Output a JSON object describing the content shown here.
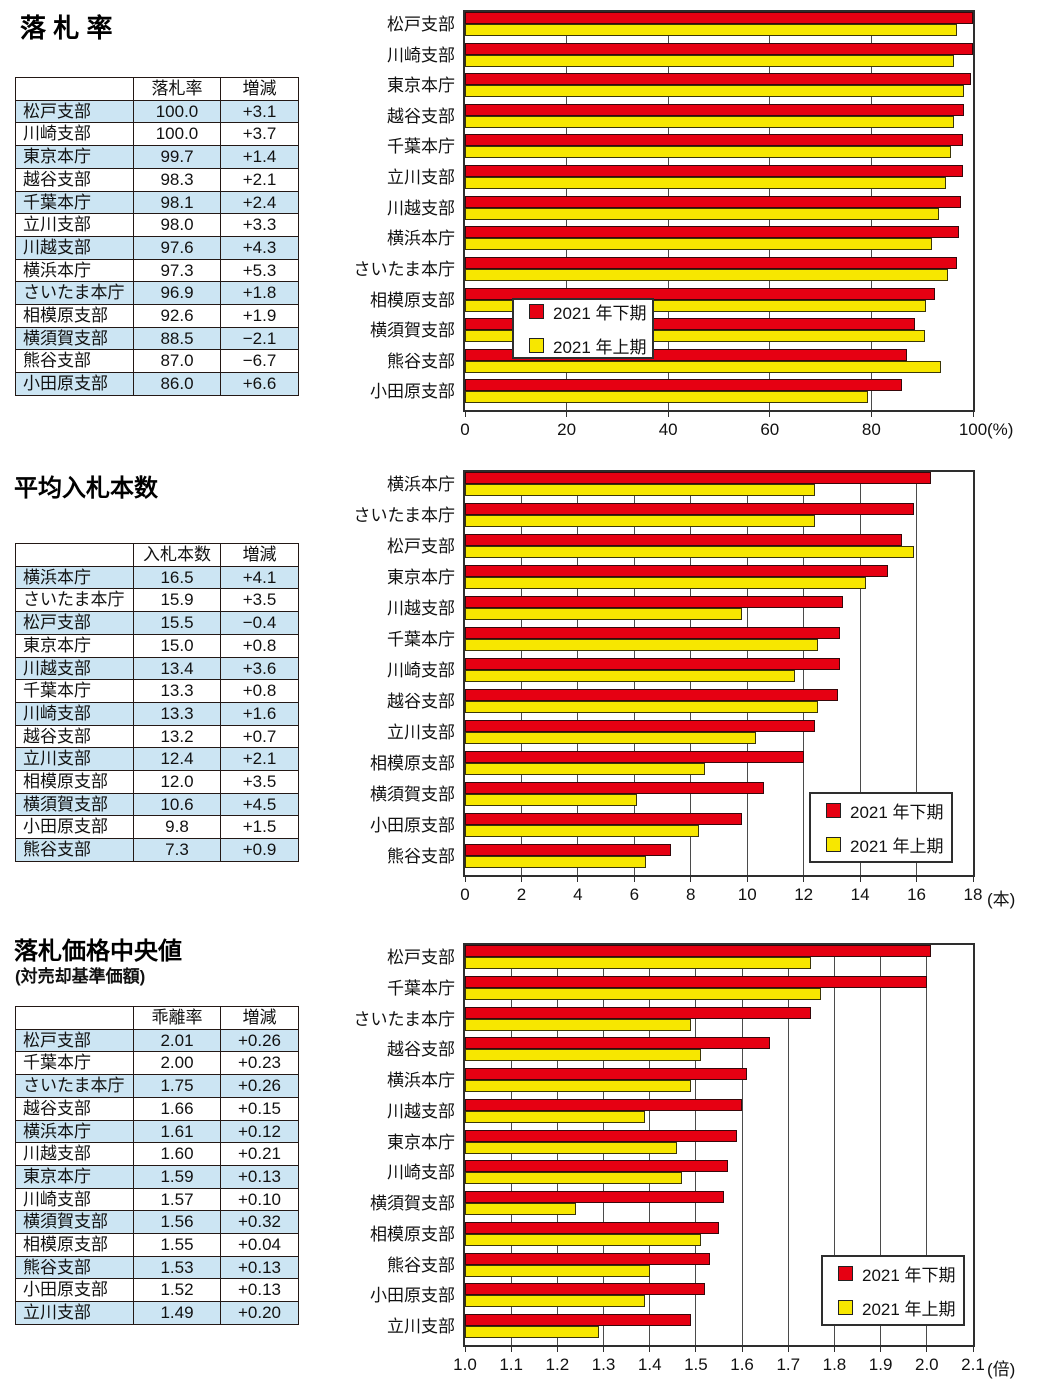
{
  "colors": {
    "series_lower": "#e60012",
    "series_upper": "#f7e700",
    "row_highlight": "#cce5f3"
  },
  "legend": {
    "lower_label": "2021 年下期",
    "upper_label": "2021 年上期"
  },
  "sections": [
    {
      "title": "落 札 率",
      "table": {
        "headers": [
          "",
          "落札率",
          "増減"
        ],
        "rows": [
          [
            "松戸支部",
            "100.0",
            "+3.1"
          ],
          [
            "川崎支部",
            "100.0",
            "+3.7"
          ],
          [
            "東京本庁",
            "99.7",
            "+1.4"
          ],
          [
            "越谷支部",
            "98.3",
            "+2.1"
          ],
          [
            "千葉本庁",
            "98.1",
            "+2.4"
          ],
          [
            "立川支部",
            "98.0",
            "+3.3"
          ],
          [
            "川越支部",
            "97.6",
            "+4.3"
          ],
          [
            "横浜本庁",
            "97.3",
            "+5.3"
          ],
          [
            "さいたま本庁",
            "96.9",
            "+1.8"
          ],
          [
            "相模原支部",
            "92.6",
            "+1.9"
          ],
          [
            "横須賀支部",
            "88.5",
            "−2.1"
          ],
          [
            "熊谷支部",
            "87.0",
            "−6.7"
          ],
          [
            "小田原支部",
            "86.0",
            "+6.6"
          ]
        ]
      }
    },
    {
      "title": "平均入札本数",
      "table": {
        "headers": [
          "",
          "入札本数",
          "増減"
        ],
        "rows": [
          [
            "横浜本庁",
            "16.5",
            "+4.1"
          ],
          [
            "さいたま本庁",
            "15.9",
            "+3.5"
          ],
          [
            "松戸支部",
            "15.5",
            "−0.4"
          ],
          [
            "東京本庁",
            "15.0",
            "+0.8"
          ],
          [
            "川越支部",
            "13.4",
            "+3.6"
          ],
          [
            "千葉本庁",
            "13.3",
            "+0.8"
          ],
          [
            "川崎支部",
            "13.3",
            "+1.6"
          ],
          [
            "越谷支部",
            "13.2",
            "+0.7"
          ],
          [
            "立川支部",
            "12.4",
            "+2.1"
          ],
          [
            "相模原支部",
            "12.0",
            "+3.5"
          ],
          [
            "横須賀支部",
            "10.6",
            "+4.5"
          ],
          [
            "小田原支部",
            "9.8",
            "+1.5"
          ],
          [
            "熊谷支部",
            "7.3",
            "+0.9"
          ]
        ]
      }
    },
    {
      "title": "落札価格中央値",
      "subtitle": "(対売却基準価額)",
      "table": {
        "headers": [
          "",
          "乖離率",
          "増減"
        ],
        "rows": [
          [
            "松戸支部",
            "2.01",
            "+0.26"
          ],
          [
            "千葉本庁",
            "2.00",
            "+0.23"
          ],
          [
            "さいたま本庁",
            "1.75",
            "+0.26"
          ],
          [
            "越谷支部",
            "1.66",
            "+0.15"
          ],
          [
            "横浜本庁",
            "1.61",
            "+0.12"
          ],
          [
            "川越支部",
            "1.60",
            "+0.21"
          ],
          [
            "東京本庁",
            "1.59",
            "+0.13"
          ],
          [
            "川崎支部",
            "1.57",
            "+0.10"
          ],
          [
            "横須賀支部",
            "1.56",
            "+0.32"
          ],
          [
            "相模原支部",
            "1.55",
            "+0.04"
          ],
          [
            "熊谷支部",
            "1.53",
            "+0.13"
          ],
          [
            "小田原支部",
            "1.52",
            "+0.13"
          ],
          [
            "立川支部",
            "1.49",
            "+0.20"
          ]
        ]
      }
    }
  ],
  "chart_data": [
    {
      "type": "bar",
      "orientation": "horizontal",
      "title": "落札率",
      "categories": [
        "松戸支部",
        "川崎支部",
        "東京本庁",
        "越谷支部",
        "千葉本庁",
        "立川支部",
        "川越支部",
        "横浜本庁",
        "さいたま本庁",
        "相模原支部",
        "横須賀支部",
        "熊谷支部",
        "小田原支部"
      ],
      "series": [
        {
          "name": "2021年下期",
          "color": "#e60012",
          "values": [
            100.0,
            100.0,
            99.7,
            98.3,
            98.1,
            98.0,
            97.6,
            97.3,
            96.9,
            92.6,
            88.5,
            87.0,
            86.0
          ]
        },
        {
          "name": "2021年上期",
          "color": "#f7e700",
          "values": [
            96.9,
            96.3,
            98.3,
            96.2,
            95.7,
            94.7,
            93.3,
            92.0,
            95.1,
            90.7,
            90.6,
            93.7,
            79.4
          ]
        }
      ],
      "xlim": [
        0,
        100
      ],
      "ticks": [
        0,
        20,
        40,
        60,
        80,
        100
      ],
      "tick_labels": [
        "0",
        "20",
        "40",
        "60",
        "80",
        "100"
      ],
      "unit": "(%)",
      "grid": true,
      "legend_position": "inside-middle-left"
    },
    {
      "type": "bar",
      "orientation": "horizontal",
      "title": "平均入札本数",
      "categories": [
        "横浜本庁",
        "さいたま本庁",
        "松戸支部",
        "東京本庁",
        "川越支部",
        "千葉本庁",
        "川崎支部",
        "越谷支部",
        "立川支部",
        "相模原支部",
        "横須賀支部",
        "小田原支部",
        "熊谷支部"
      ],
      "series": [
        {
          "name": "2021年下期",
          "color": "#e60012",
          "values": [
            16.5,
            15.9,
            15.5,
            15.0,
            13.4,
            13.3,
            13.3,
            13.2,
            12.4,
            12.0,
            10.6,
            9.8,
            7.3
          ]
        },
        {
          "name": "2021年上期",
          "color": "#f7e700",
          "values": [
            12.4,
            12.4,
            15.9,
            14.2,
            9.8,
            12.5,
            11.7,
            12.5,
            10.3,
            8.5,
            6.1,
            8.3,
            6.4
          ]
        }
      ],
      "xlim": [
        0,
        18
      ],
      "ticks": [
        0,
        2,
        4,
        6,
        8,
        10,
        12,
        14,
        16,
        18
      ],
      "tick_labels": [
        "0",
        "2",
        "4",
        "6",
        "8",
        "10",
        "12",
        "14",
        "16",
        "18"
      ],
      "unit": "(本)",
      "grid": true,
      "legend_position": "inside-bottom-right"
    },
    {
      "type": "bar",
      "orientation": "horizontal",
      "title": "落札価格中央値(対売却基準価額)",
      "categories": [
        "松戸支部",
        "千葉本庁",
        "さいたま本庁",
        "越谷支部",
        "横浜本庁",
        "川越支部",
        "東京本庁",
        "川崎支部",
        "横須賀支部",
        "相模原支部",
        "熊谷支部",
        "小田原支部",
        "立川支部"
      ],
      "series": [
        {
          "name": "2021年下期",
          "color": "#e60012",
          "values": [
            2.01,
            2.0,
            1.75,
            1.66,
            1.61,
            1.6,
            1.59,
            1.57,
            1.56,
            1.55,
            1.53,
            1.52,
            1.49
          ]
        },
        {
          "name": "2021年上期",
          "color": "#f7e700",
          "values": [
            1.75,
            1.77,
            1.49,
            1.51,
            1.49,
            1.39,
            1.46,
            1.47,
            1.24,
            1.51,
            1.4,
            1.39,
            1.29
          ]
        }
      ],
      "xlim": [
        1.0,
        2.1
      ],
      "ticks": [
        1.0,
        1.1,
        1.2,
        1.3,
        1.4,
        1.5,
        1.6,
        1.7,
        1.8,
        1.9,
        2.0,
        2.1
      ],
      "tick_labels": [
        "1.0",
        "1.1",
        "1.2",
        "1.3",
        "1.4",
        "1.5",
        "1.6",
        "1.7",
        "1.8",
        "1.9",
        "2.0",
        "2.1"
      ],
      "unit": "(倍)",
      "grid": true,
      "legend_position": "inside-bottom-right"
    }
  ]
}
